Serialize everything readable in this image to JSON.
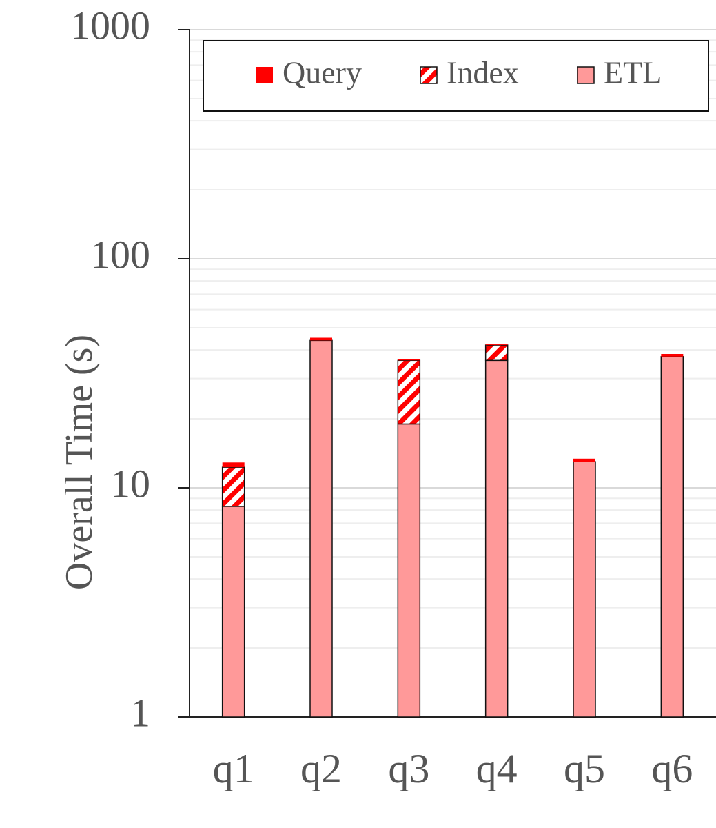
{
  "chart_data": {
    "type": "stacked-bar",
    "y_label": "Overall Time (s)",
    "categories": [
      "q1",
      "q2",
      "q3",
      "q4",
      "q5",
      "q6"
    ],
    "series": [
      {
        "name": "Query",
        "color": "#ff0000",
        "values": [
          0.6,
          1.2,
          0.4,
          0.3,
          0.4,
          1.0
        ]
      },
      {
        "name": "Index",
        "color": "#ff0000",
        "pattern": "hatch",
        "values": [
          4.0,
          0,
          17,
          6,
          0,
          0
        ]
      },
      {
        "name": "ETL",
        "color": "#ff9999",
        "values": [
          8.3,
          44,
          19,
          36,
          13,
          37.4
        ]
      }
    ],
    "log_scale": true,
    "ylim": [
      1,
      1000
    ],
    "yticks": [
      1,
      10,
      100,
      1000
    ],
    "grid": true,
    "legend": "top"
  }
}
